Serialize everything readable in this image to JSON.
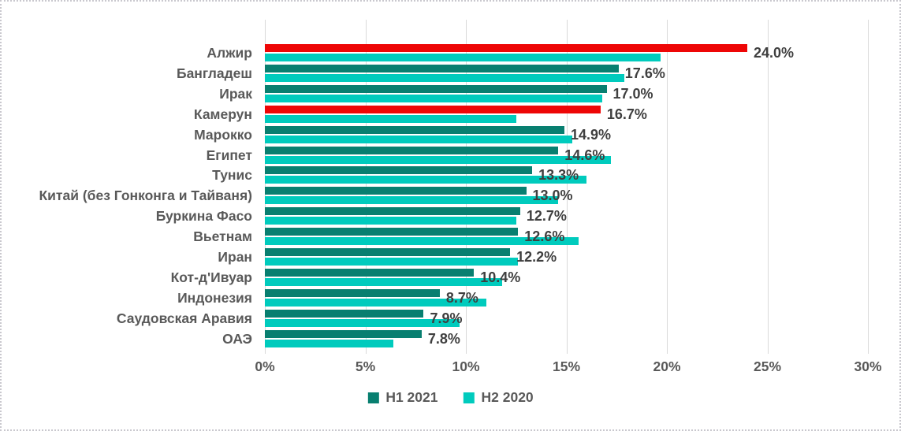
{
  "chart_data": {
    "type": "bar",
    "orientation": "horizontal",
    "title": "",
    "xlabel": "",
    "ylabel": "",
    "categories": [
      "Алжир",
      "Бангладеш",
      "Ирак",
      "Камерун",
      "Марокко",
      "Египет",
      "Тунис",
      "Китай (без Гонконга и Тайваня)",
      "Буркина Фасо",
      "Вьетнам",
      "Иран",
      "Кот-д'Ивуар",
      "Индонезия",
      "Саудовская Аравия",
      "ОАЭ"
    ],
    "series": [
      {
        "name": "H1 2021",
        "color": "#087f70",
        "highlight_color": "#ee0606",
        "highlighted_categories": [
          "Алжир",
          "Камерун"
        ],
        "values": [
          24.0,
          17.6,
          17.0,
          16.7,
          14.9,
          14.6,
          13.3,
          13.0,
          12.7,
          12.6,
          12.2,
          10.4,
          8.7,
          7.9,
          7.8
        ],
        "data_labels": [
          "24.0%",
          "17.6%",
          "17.0%",
          "16.7%",
          "14.9%",
          "14.6%",
          "13.3%",
          "13.0%",
          "12.7%",
          "12.6%",
          "12.2%",
          "10.4%",
          "8.7%",
          "7.9%",
          "7.8%"
        ]
      },
      {
        "name": "H2 2020",
        "color": "#00cbbd",
        "values": [
          19.7,
          17.9,
          16.8,
          12.5,
          15.3,
          17.2,
          16.0,
          14.6,
          12.5,
          15.6,
          12.6,
          11.8,
          11.0,
          9.7,
          6.4
        ],
        "data_labels": []
      }
    ],
    "x_ticks": [
      "0%",
      "5%",
      "10%",
      "15%",
      "20%",
      "25%",
      "30%"
    ],
    "x_tick_values": [
      0,
      5,
      10,
      15,
      20,
      25,
      30
    ],
    "xlim": [
      0,
      30
    ],
    "gridlines": true,
    "legend_position": "bottom",
    "legend": [
      {
        "label": "H1 2021",
        "color": "#087f70"
      },
      {
        "label": "H2 2020",
        "color": "#00cbbd"
      }
    ],
    "colors": {
      "grid": "#d9d9d9",
      "axis_text": "#595959",
      "category_text": "#595959",
      "data_label_text": "#3f3f3f",
      "background": "#ffffff",
      "frame_border": "#c9c8ce"
    }
  }
}
